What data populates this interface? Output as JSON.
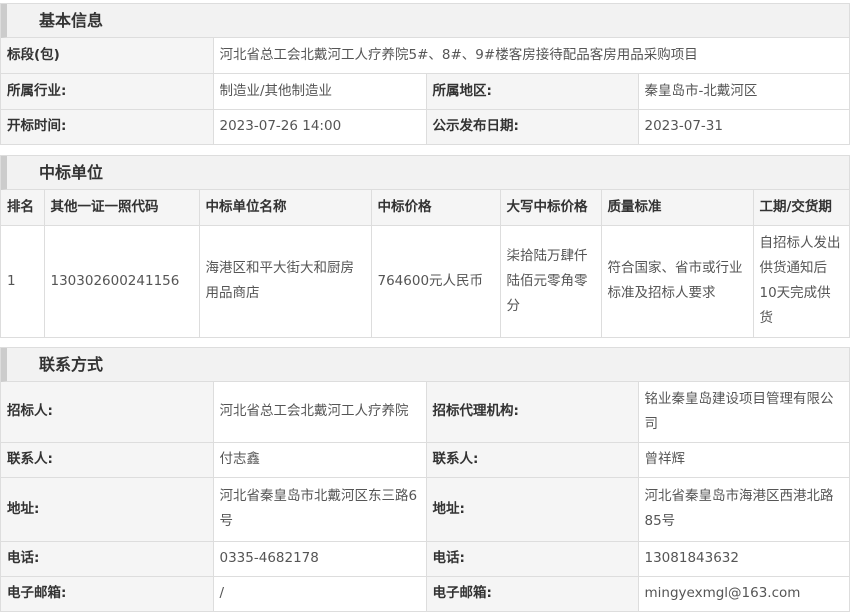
{
  "basic": {
    "title": "基本信息",
    "section_label": "标段(包)",
    "section_value": "河北省总工会北戴河工人疗养院5#、8#、9#楼客房接待配品客房用品采购项目",
    "industry_label": "所属行业:",
    "industry_value": "制造业/其他制造业",
    "region_label": "所属地区:",
    "region_value": "秦皇岛市-北戴河区",
    "open_label": "开标时间:",
    "open_value": "2023-07-26 14:00",
    "publish_label": "公示发布日期:",
    "publish_value": "2023-07-31"
  },
  "winner": {
    "title": "中标单位",
    "headers": [
      "排名",
      "其他一证一照代码",
      "中标单位名称",
      "中标价格",
      "大写中标价格",
      "质量标准",
      "工期/交货期"
    ],
    "rows": [
      [
        "1",
        "130302600241156",
        "海港区和平大街大和厨房用品商店",
        "764600元人民币",
        "柒拾陆万肆仟陆佰元零角零分",
        "符合国家、省市或行业标准及招标人要求",
        "自招标人发出供货通知后10天完成供货"
      ]
    ]
  },
  "contact": {
    "title": "联系方式",
    "rows": [
      [
        "招标人:",
        "河北省总工会北戴河工人疗养院",
        "招标代理机构:",
        "铭业秦皇岛建设项目管理有限公司"
      ],
      [
        "联系人:",
        "付志鑫",
        "联系人:",
        "曾祥辉"
      ],
      [
        "地址:",
        "河北省秦皇岛市北戴河区东三路6号",
        "地址:",
        "河北省秦皇岛市海港区西港北路85号"
      ],
      [
        "电话:",
        "0335-4682178",
        "电话:",
        "13081843632"
      ],
      [
        "电子邮箱:",
        "/",
        "电子邮箱:",
        "mingyexmgl@163.com"
      ]
    ]
  }
}
